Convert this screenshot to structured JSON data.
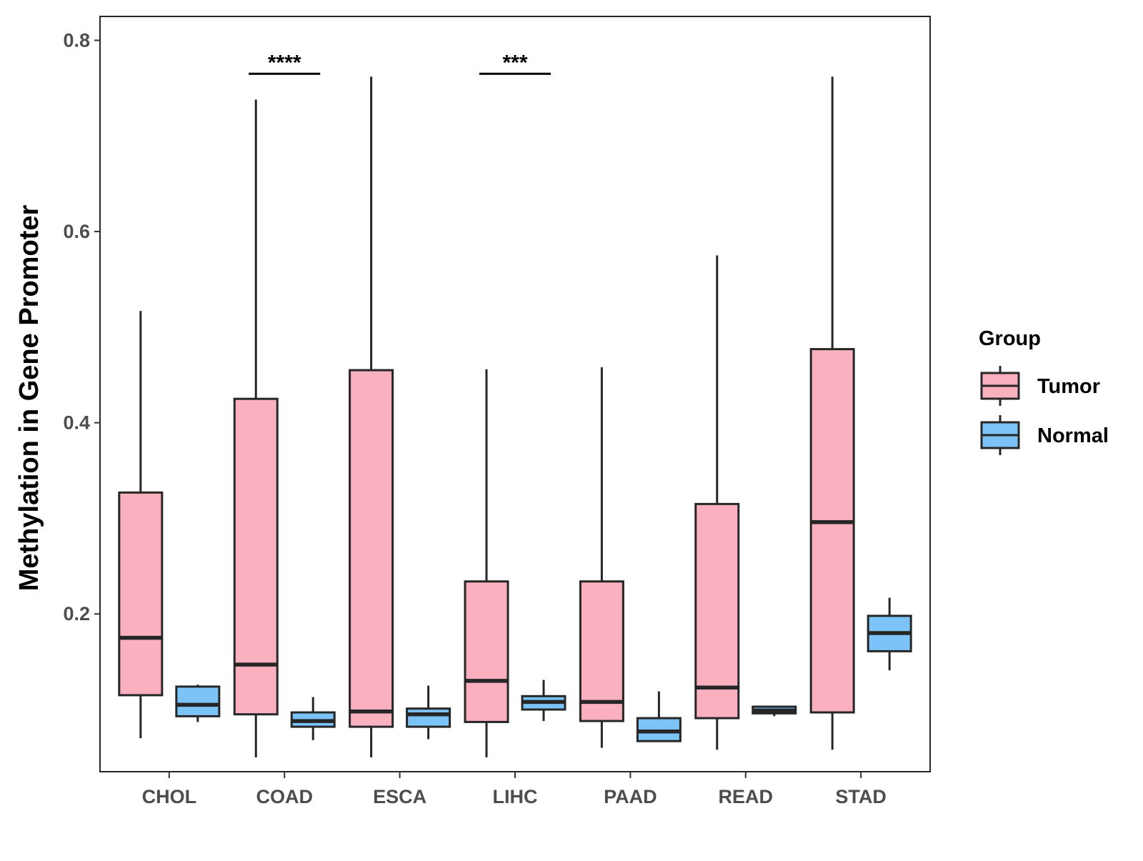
{
  "chart_data": {
    "type": "boxplot",
    "title": "",
    "xlabel": "",
    "ylabel": "Methylation in Gene Promoter",
    "ylim": [
      0.035,
      0.825
    ],
    "yticks": [
      0.2,
      0.4,
      0.6,
      0.8
    ],
    "ytick_labels": [
      "0.2",
      "0.4",
      "0.6",
      "0.8"
    ],
    "categories": [
      "CHOL",
      "COAD",
      "ESCA",
      "LIHC",
      "PAAD",
      "READ",
      "STAD"
    ],
    "legend": {
      "title": "Group",
      "position": "right",
      "entries": [
        {
          "name": "Tumor",
          "color": "#fbb0c0"
        },
        {
          "name": "Normal",
          "color": "#7cc4f7"
        }
      ]
    },
    "series": [
      {
        "name": "Tumor",
        "color": "#fbb0c0",
        "boxes": [
          {
            "min": 0.07,
            "q1": 0.115,
            "median": 0.175,
            "q3": 0.327,
            "max": 0.517
          },
          {
            "min": 0.05,
            "q1": 0.095,
            "median": 0.147,
            "q3": 0.425,
            "max": 0.738
          },
          {
            "min": 0.05,
            "q1": 0.082,
            "median": 0.098,
            "q3": 0.455,
            "max": 0.762
          },
          {
            "min": 0.05,
            "q1": 0.087,
            "median": 0.13,
            "q3": 0.234,
            "max": 0.456
          },
          {
            "min": 0.06,
            "q1": 0.088,
            "median": 0.108,
            "q3": 0.234,
            "max": 0.458
          },
          {
            "min": 0.058,
            "q1": 0.091,
            "median": 0.123,
            "q3": 0.315,
            "max": 0.575
          },
          {
            "min": 0.058,
            "q1": 0.097,
            "median": 0.296,
            "q3": 0.477,
            "max": 0.762
          }
        ]
      },
      {
        "name": "Normal",
        "color": "#7cc4f7",
        "boxes": [
          {
            "min": 0.087,
            "q1": 0.093,
            "median": 0.105,
            "q3": 0.124,
            "max": 0.126
          },
          {
            "min": 0.068,
            "q1": 0.082,
            "median": 0.088,
            "q3": 0.097,
            "max": 0.113
          },
          {
            "min": 0.069,
            "q1": 0.082,
            "median": 0.095,
            "q3": 0.101,
            "max": 0.125
          },
          {
            "min": 0.088,
            "q1": 0.1,
            "median": 0.108,
            "q3": 0.114,
            "max": 0.131
          },
          {
            "min": 0.067,
            "q1": 0.067,
            "median": 0.077,
            "q3": 0.091,
            "max": 0.119
          },
          {
            "min": 0.093,
            "q1": 0.096,
            "median": 0.099,
            "q3": 0.103,
            "max": 0.104
          },
          {
            "min": 0.141,
            "q1": 0.161,
            "median": 0.18,
            "q3": 0.198,
            "max": 0.217
          }
        ]
      }
    ],
    "significance": [
      {
        "category": "COAD",
        "label": "****",
        "y": 0.765
      },
      {
        "category": "LIHC",
        "label": "***",
        "y": 0.765
      }
    ]
  }
}
